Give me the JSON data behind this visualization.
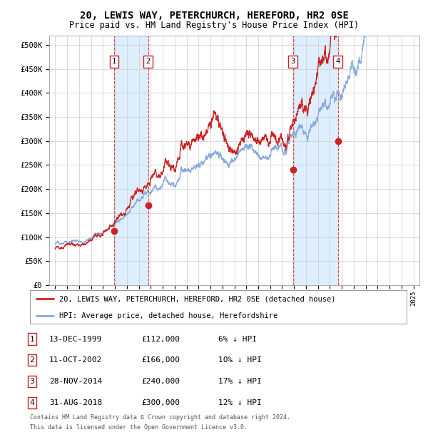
{
  "title": "20, LEWIS WAY, PETERCHURCH, HEREFORD, HR2 0SE",
  "subtitle": "Price paid vs. HM Land Registry's House Price Index (HPI)",
  "title_fontsize": 10,
  "subtitle_fontsize": 8.5,
  "xlim": [
    1994.5,
    2025.5
  ],
  "ylim": [
    0,
    520000
  ],
  "yticks": [
    0,
    50000,
    100000,
    150000,
    200000,
    250000,
    300000,
    350000,
    400000,
    450000,
    500000
  ],
  "ytick_labels": [
    "£0",
    "£50K",
    "£100K",
    "£150K",
    "£200K",
    "£250K",
    "£300K",
    "£350K",
    "£400K",
    "£450K",
    "£500K"
  ],
  "hpi_color": "#88aadd",
  "price_color": "#cc2222",
  "sale_marker_color": "#cc2222",
  "dashed_line_color": "#dd4444",
  "shading_color": "#ddeeff",
  "grid_color": "#cccccc",
  "background_color": "#ffffff",
  "sales": [
    {
      "label": 1,
      "date_str": "13-DEC-1999",
      "year": 1999.95,
      "price": 112000,
      "price_str": "£112,000",
      "hpi_note": "6% ↓ HPI"
    },
    {
      "label": 2,
      "date_str": "11-OCT-2002",
      "year": 2002.78,
      "price": 166000,
      "price_str": "£166,000",
      "hpi_note": "10% ↓ HPI"
    },
    {
      "label": 3,
      "date_str": "28-NOV-2014",
      "year": 2014.91,
      "price": 240000,
      "price_str": "£240,000",
      "hpi_note": "17% ↓ HPI"
    },
    {
      "label": 4,
      "date_str": "31-AUG-2018",
      "year": 2018.67,
      "price": 300000,
      "price_str": "£300,000",
      "hpi_note": "12% ↓ HPI"
    }
  ],
  "legend_entries": [
    "20, LEWIS WAY, PETERCHURCH, HEREFORD, HR2 0SE (detached house)",
    "HPI: Average price, detached house, Herefordshire"
  ],
  "footer_line1": "Contains HM Land Registry data © Crown copyright and database right 2024.",
  "footer_line2": "This data is licensed under the Open Government Licence v3.0."
}
